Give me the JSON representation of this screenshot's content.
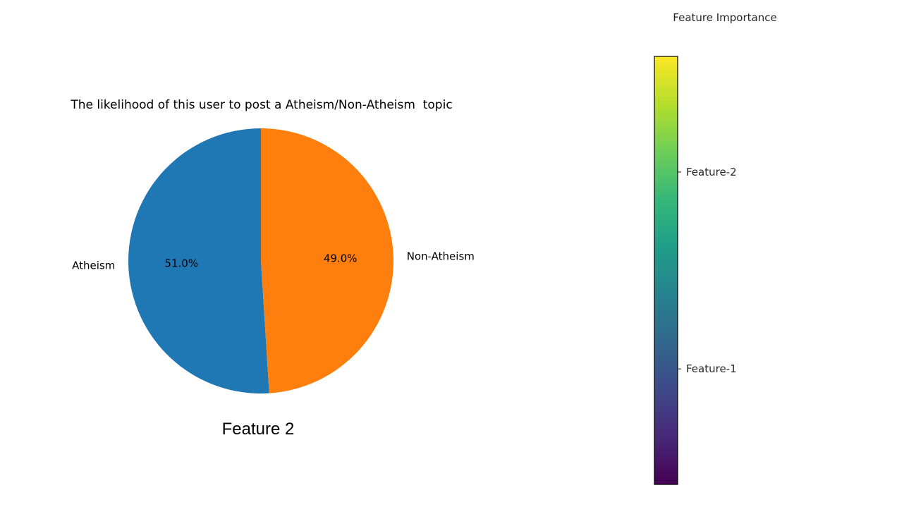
{
  "chart_data": [
    {
      "type": "pie",
      "title": "The likelihood of this user to post a Atheism/Non-Atheism  topic",
      "categories": [
        "Atheism",
        "Non-Atheism"
      ],
      "values": [
        51.0,
        49.0
      ],
      "value_labels": [
        "51.0%",
        "49.0%"
      ],
      "colors": [
        "#1f77b4",
        "#ff7f0e"
      ],
      "start_angle_deg": 90,
      "direction": "counterclockwise",
      "caption": "Feature 2"
    },
    {
      "type": "colorbar",
      "title": "Feature Importance",
      "colormap": "viridis",
      "range": [
        0,
        1
      ],
      "ticks": [
        {
          "label": "Feature-1",
          "value": 0.27
        },
        {
          "label": "Feature-2",
          "value": 0.73
        }
      ],
      "colors": [
        "#440154",
        "#482878",
        "#3e4989",
        "#31688e",
        "#26828e",
        "#1f9e89",
        "#35b779",
        "#6ece58",
        "#b5de2b",
        "#fde725"
      ]
    }
  ]
}
